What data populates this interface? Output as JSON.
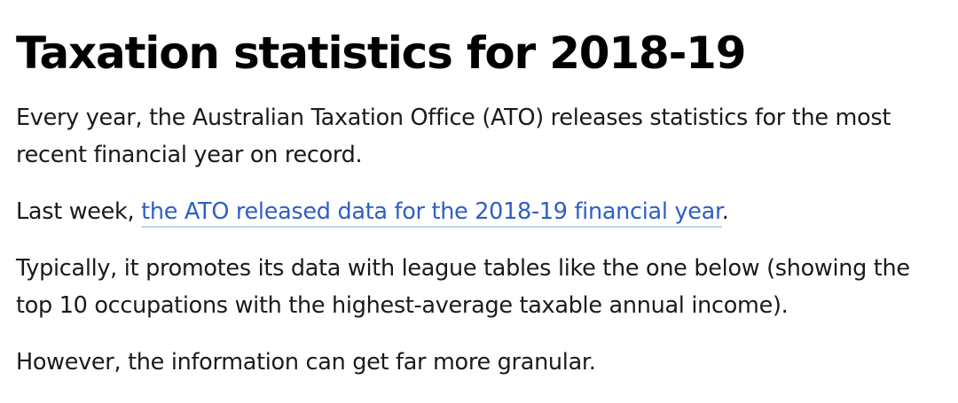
{
  "article": {
    "title": "Taxation statistics for 2018-19",
    "paragraph1": "Every year, the Australian Taxation Office (ATO) releases statistics for the most recent financial year on record.",
    "paragraph2": {
      "prefix": "Last week, ",
      "link_text": "the ATO released data for the 2018-19 financial year",
      "suffix": "."
    },
    "paragraph3": "Typically, it promotes its data with league tables like the one below (showing the top 10 occupations with the highest-average taxable annual income).",
    "paragraph4": "However, the information can get far more granular."
  },
  "colors": {
    "text": "#1a1a1a",
    "heading": "#000000",
    "link": "#2f5fc4",
    "link_underline": "#c8d3e6",
    "background": "#ffffff"
  }
}
